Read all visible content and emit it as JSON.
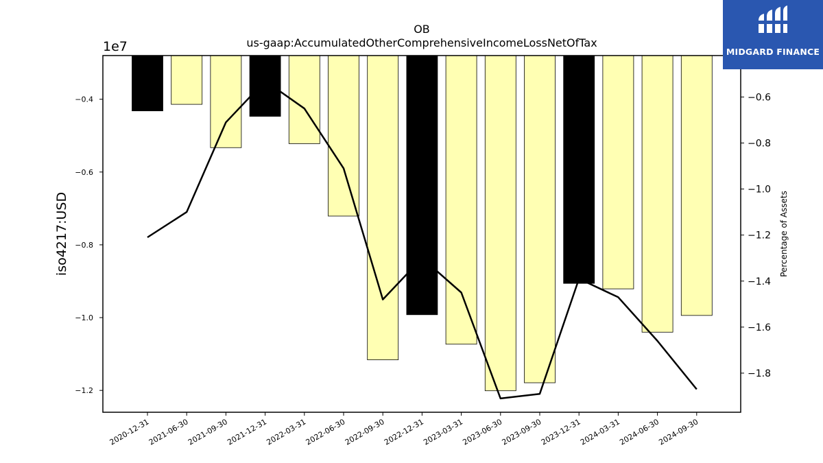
{
  "chart_data": {
    "type": "bar",
    "title": "OB",
    "subtitle": "us-gaap:AccumulatedOtherComprehensiveIncomeLossNetOfTax",
    "ylabel": "iso4217:USD",
    "ylabel_right": "Percentage of Assets",
    "y_offset_label": "1e7",
    "categories": [
      "2020-12-31",
      "2021-06-30",
      "2021-09-30",
      "2021-12-31",
      "2022-03-31",
      "2022-06-30",
      "2022-09-30",
      "2022-12-31",
      "2023-03-31",
      "2023-06-30",
      "2023-09-30",
      "2023-12-31",
      "2024-03-31",
      "2024-06-30",
      "2024-09-30"
    ],
    "series": [
      {
        "type": "bar",
        "values": [
          -4.32,
          -4.14,
          -5.33,
          -4.47,
          -5.22,
          -7.21,
          -11.16,
          -9.92,
          -10.73,
          -12.01,
          -11.79,
          -9.06,
          -9.21,
          -10.4,
          -9.94
        ],
        "units": "1e6",
        "highlight": [
          true,
          false,
          false,
          true,
          false,
          false,
          false,
          true,
          false,
          false,
          false,
          true,
          false,
          false,
          false
        ]
      },
      {
        "type": "line",
        "axis": "right",
        "values": [
          -1.21,
          -1.1,
          -0.71,
          -0.53,
          -0.65,
          -0.91,
          -1.48,
          -1.3,
          -1.45,
          -1.91,
          -1.89,
          -1.39,
          -1.47,
          -1.66,
          -1.87
        ]
      }
    ],
    "ylim": [
      -12.6,
      -2.8
    ],
    "yticks": [
      -1.2,
      -1.0,
      -0.8,
      -0.6,
      -0.4
    ],
    "ylim_right": [
      -1.97,
      -0.42
    ],
    "yticks_right": [
      -1.8,
      -1.6,
      -1.4,
      -1.2,
      -1.0,
      -0.8,
      -0.6
    ],
    "colors": {
      "bar": "#ffffb3",
      "bar_highlight": "#000000",
      "line": "#000000"
    },
    "grid": false
  },
  "logo": {
    "text": "MIDGARD FINANCE",
    "background": "#2a57b0"
  }
}
